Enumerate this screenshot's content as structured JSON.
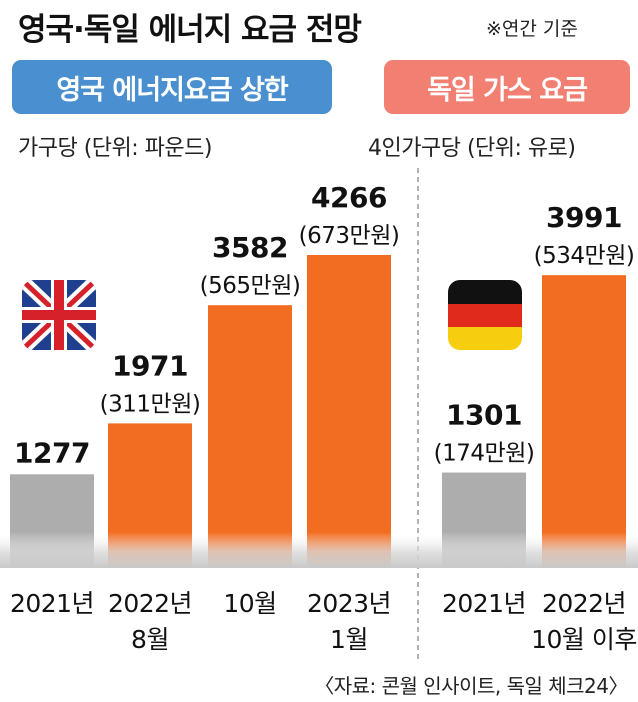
{
  "title": "영국·독일 에너지 요금 전망",
  "title_note": "※연간 기준",
  "panels": {
    "uk": {
      "label": "영국 에너지요금 상한",
      "unit": "가구당 (단위: 파운드)",
      "color": "#4a8fcf"
    },
    "de": {
      "label": "독일 가스 요금",
      "unit": "4인가구당 (단위: 유로)",
      "color": "#f17f72"
    }
  },
  "source": "〈자료: 콘월 인사이트, 독일 체크24〉",
  "colors": {
    "bar": "#f26d21",
    "bar_baseline": "#adadad",
    "divider": "#999999"
  },
  "icons": {
    "uk": "uk-flag-icon",
    "de": "germany-flag-icon"
  },
  "chart_data": [
    {
      "type": "bar",
      "title": "영국 에너지요금 상한",
      "ylabel": "가구당 (단위: 파운드)",
      "ylim": [
        0,
        4266
      ],
      "categories": [
        "2021년",
        "2022년\n8월",
        "10월",
        "2023년\n1월"
      ],
      "values": [
        1277,
        1971,
        3582,
        4266
      ],
      "value_labels": [
        "1277",
        "1971",
        "3582",
        "4266"
      ],
      "krw_labels": [
        "",
        "(311만원)",
        "(565만원)",
        "(673만원)"
      ]
    },
    {
      "type": "bar",
      "title": "독일 가스 요금",
      "ylabel": "4인가구당 (단위: 유로)",
      "ylim": [
        0,
        3991
      ],
      "categories": [
        "2021년",
        "2022년\n10월 이후"
      ],
      "values": [
        1301,
        3991
      ],
      "value_labels": [
        "1301",
        "3991"
      ],
      "krw_labels": [
        "(174만원)",
        "(534만원)"
      ]
    }
  ]
}
